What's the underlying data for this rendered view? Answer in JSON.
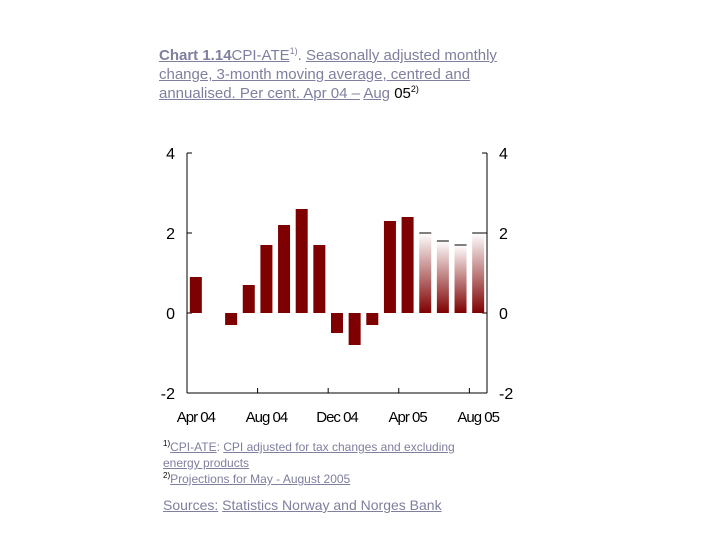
{
  "title": {
    "label": "Chart 1.14",
    "name": "CPI-ATE",
    "name_sup": "1)",
    "sep": ".",
    "description": "Seasonally adjusted monthly change, 3-month moving average, centred and annualised. Per cent. Apr 04 –",
    "tail_underlined": "Aug",
    "tail_plain": " 05",
    "tail_sup": "2)"
  },
  "colors": {
    "actual": "#7f0000",
    "projection_top": "#ffffff",
    "projection_bottom": "#7f0000",
    "muted_text": "#7f7f9f"
  },
  "chart_data": {
    "type": "bar",
    "categories": [
      "Apr 04",
      "May 04",
      "Jun 04",
      "Jul 04",
      "Aug 04",
      "Sep 04",
      "Oct 04",
      "Nov 04",
      "Dec 04",
      "Jan 05",
      "Feb 05",
      "Mar 05",
      "Apr 05",
      "May 05",
      "Jun 05",
      "Jul 05",
      "Aug 05"
    ],
    "values": [
      0.9,
      0,
      -0.3,
      0.7,
      1.7,
      2.2,
      2.6,
      1.7,
      -0.5,
      -0.8,
      -0.3,
      2.3,
      2.4,
      2.0,
      1.8,
      1.7,
      2.0
    ],
    "projection": [
      false,
      false,
      false,
      false,
      false,
      false,
      false,
      false,
      false,
      false,
      false,
      false,
      false,
      true,
      true,
      true,
      true
    ],
    "x_tick_labels": [
      "Apr 04",
      "Aug 04",
      "Dec 04",
      "Apr 05",
      "Aug 05"
    ],
    "y_ticks": [
      4,
      2,
      0,
      -2
    ],
    "ylim": [
      -2,
      4
    ],
    "grid": false,
    "dual_y_axis": true,
    "legend": "none"
  },
  "footnotes": {
    "note1_sup": "1)",
    "note1_term": "CPI-ATE",
    "note1_sep": ": ",
    "note1_text": "CPI adjusted for tax changes and excluding energy products",
    "note2_sup": "2)",
    "note2_text": "Projections for May - August 2005"
  },
  "sources": {
    "label": "Sources:",
    "text": "Statistics Norway and Norges Bank"
  }
}
